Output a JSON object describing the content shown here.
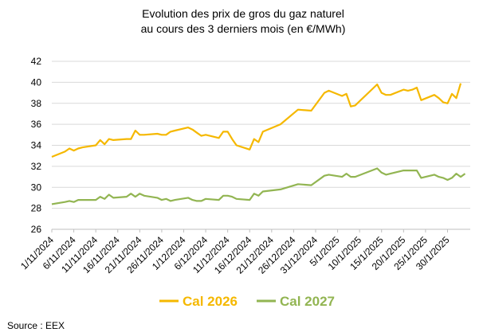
{
  "chart_data": {
    "type": "line",
    "title": [
      "Evolution des prix de gros du gaz naturel",
      "au cours des 3 derniers mois (en €/MWh)"
    ],
    "source": "Source : EEX",
    "ylim": [
      26,
      42
    ],
    "yticks": [
      26,
      28,
      30,
      32,
      34,
      36,
      38,
      40,
      42
    ],
    "grid": true,
    "legend_position": "bottom",
    "x_range": [
      "2024-11-01",
      "2025-01-31"
    ],
    "x_ticks": [
      "2024-11-01",
      "2024-11-06",
      "2024-11-11",
      "2024-11-16",
      "2024-11-21",
      "2024-11-26",
      "2024-12-01",
      "2024-12-06",
      "2024-12-11",
      "2024-12-16",
      "2024-12-21",
      "2024-12-26",
      "2024-12-31",
      "2025-01-05",
      "2025-01-10",
      "2025-01-15",
      "2025-01-20",
      "2025-01-25",
      "2025-01-30"
    ],
    "x_tick_labels": [
      "1/11/2024",
      "6/11/2024",
      "11/11/2024",
      "16/11/2024",
      "21/11/2024",
      "26/11/2024",
      "1/12/2024",
      "6/12/2024",
      "11/12/2024",
      "16/12/2024",
      "21/12/2024",
      "26/12/2024",
      "31/12/2024",
      "5/1/2025",
      "10/1/2025",
      "15/1/2025",
      "20/1/2025",
      "25/1/2025",
      "30/1/2025"
    ],
    "series": [
      {
        "name": "Cal 2026",
        "color": "#f5b800",
        "points": [
          [
            "2024-11-01",
            32.9
          ],
          [
            "2024-11-04",
            33.4
          ],
          [
            "2024-11-05",
            33.7
          ],
          [
            "2024-11-06",
            33.5
          ],
          [
            "2024-11-07",
            33.7
          ],
          [
            "2024-11-08",
            33.8
          ],
          [
            "2024-11-11",
            34.0
          ],
          [
            "2024-11-12",
            34.5
          ],
          [
            "2024-11-13",
            34.1
          ],
          [
            "2024-11-14",
            34.6
          ],
          [
            "2024-11-15",
            34.5
          ],
          [
            "2024-11-18",
            34.6
          ],
          [
            "2024-11-19",
            34.6
          ],
          [
            "2024-11-20",
            35.4
          ],
          [
            "2024-11-21",
            35.0
          ],
          [
            "2024-11-22",
            35.0
          ],
          [
            "2024-11-25",
            35.1
          ],
          [
            "2024-11-26",
            35.0
          ],
          [
            "2024-11-27",
            35.0
          ],
          [
            "2024-11-28",
            35.3
          ],
          [
            "2024-11-29",
            35.4
          ],
          [
            "2024-12-02",
            35.7
          ],
          [
            "2024-12-03",
            35.5
          ],
          [
            "2024-12-04",
            35.2
          ],
          [
            "2024-12-05",
            34.9
          ],
          [
            "2024-12-06",
            35.0
          ],
          [
            "2024-12-09",
            34.7
          ],
          [
            "2024-12-10",
            35.3
          ],
          [
            "2024-12-11",
            35.3
          ],
          [
            "2024-12-12",
            34.6
          ],
          [
            "2024-12-13",
            34.0
          ],
          [
            "2024-12-16",
            33.6
          ],
          [
            "2024-12-17",
            34.6
          ],
          [
            "2024-12-18",
            34.3
          ],
          [
            "2024-12-19",
            35.3
          ],
          [
            "2024-12-23",
            36.0
          ],
          [
            "2024-12-27",
            37.4
          ],
          [
            "2024-12-30",
            37.3
          ],
          [
            "2025-01-02",
            39.0
          ],
          [
            "2025-01-03",
            39.2
          ],
          [
            "2025-01-06",
            38.7
          ],
          [
            "2025-01-07",
            38.9
          ],
          [
            "2025-01-08",
            37.7
          ],
          [
            "2025-01-09",
            37.8
          ],
          [
            "2025-01-14",
            39.8
          ],
          [
            "2025-01-15",
            39.0
          ],
          [
            "2025-01-16",
            38.8
          ],
          [
            "2025-01-17",
            38.8
          ],
          [
            "2025-01-20",
            39.3
          ],
          [
            "2025-01-21",
            39.2
          ],
          [
            "2025-01-22",
            39.3
          ],
          [
            "2025-01-23",
            39.5
          ],
          [
            "2025-01-24",
            38.3
          ],
          [
            "2025-01-27",
            38.8
          ],
          [
            "2025-01-28",
            38.5
          ],
          [
            "2025-01-29",
            38.1
          ],
          [
            "2025-01-30",
            38.0
          ],
          [
            "2025-01-31",
            38.9
          ],
          [
            "2025-02-01",
            38.5
          ],
          [
            "2025-02-02",
            39.9
          ]
        ]
      },
      {
        "name": "Cal 2027",
        "color": "#92b552",
        "points": [
          [
            "2024-11-01",
            28.4
          ],
          [
            "2024-11-04",
            28.6
          ],
          [
            "2024-11-05",
            28.7
          ],
          [
            "2024-11-06",
            28.6
          ],
          [
            "2024-11-07",
            28.8
          ],
          [
            "2024-11-08",
            28.8
          ],
          [
            "2024-11-11",
            28.8
          ],
          [
            "2024-11-12",
            29.1
          ],
          [
            "2024-11-13",
            28.9
          ],
          [
            "2024-11-14",
            29.3
          ],
          [
            "2024-11-15",
            29.0
          ],
          [
            "2024-11-18",
            29.1
          ],
          [
            "2024-11-19",
            29.4
          ],
          [
            "2024-11-20",
            29.1
          ],
          [
            "2024-11-21",
            29.4
          ],
          [
            "2024-11-22",
            29.2
          ],
          [
            "2024-11-25",
            29.0
          ],
          [
            "2024-11-26",
            28.8
          ],
          [
            "2024-11-27",
            28.9
          ],
          [
            "2024-11-28",
            28.7
          ],
          [
            "2024-11-29",
            28.8
          ],
          [
            "2024-12-02",
            29.0
          ],
          [
            "2024-12-03",
            28.8
          ],
          [
            "2024-12-04",
            28.7
          ],
          [
            "2024-12-05",
            28.7
          ],
          [
            "2024-12-06",
            28.9
          ],
          [
            "2024-12-09",
            28.8
          ],
          [
            "2024-12-10",
            29.2
          ],
          [
            "2024-12-11",
            29.2
          ],
          [
            "2024-12-12",
            29.1
          ],
          [
            "2024-12-13",
            28.9
          ],
          [
            "2024-12-16",
            28.8
          ],
          [
            "2024-12-17",
            29.4
          ],
          [
            "2024-12-18",
            29.2
          ],
          [
            "2024-12-19",
            29.6
          ],
          [
            "2024-12-23",
            29.8
          ],
          [
            "2024-12-27",
            30.3
          ],
          [
            "2024-12-30",
            30.2
          ],
          [
            "2025-01-02",
            31.1
          ],
          [
            "2025-01-03",
            31.2
          ],
          [
            "2025-01-06",
            31.0
          ],
          [
            "2025-01-07",
            31.3
          ],
          [
            "2025-01-08",
            31.0
          ],
          [
            "2025-01-09",
            31.0
          ],
          [
            "2025-01-14",
            31.8
          ],
          [
            "2025-01-15",
            31.4
          ],
          [
            "2025-01-16",
            31.2
          ],
          [
            "2025-01-17",
            31.3
          ],
          [
            "2025-01-20",
            31.6
          ],
          [
            "2025-01-21",
            31.6
          ],
          [
            "2025-01-22",
            31.6
          ],
          [
            "2025-01-23",
            31.6
          ],
          [
            "2025-01-24",
            30.9
          ],
          [
            "2025-01-27",
            31.2
          ],
          [
            "2025-01-28",
            31.0
          ],
          [
            "2025-01-29",
            30.9
          ],
          [
            "2025-01-30",
            30.7
          ],
          [
            "2025-01-31",
            30.9
          ],
          [
            "2025-02-01",
            31.3
          ],
          [
            "2025-02-02",
            31.0
          ],
          [
            "2025-02-03",
            31.3
          ]
        ]
      }
    ]
  }
}
